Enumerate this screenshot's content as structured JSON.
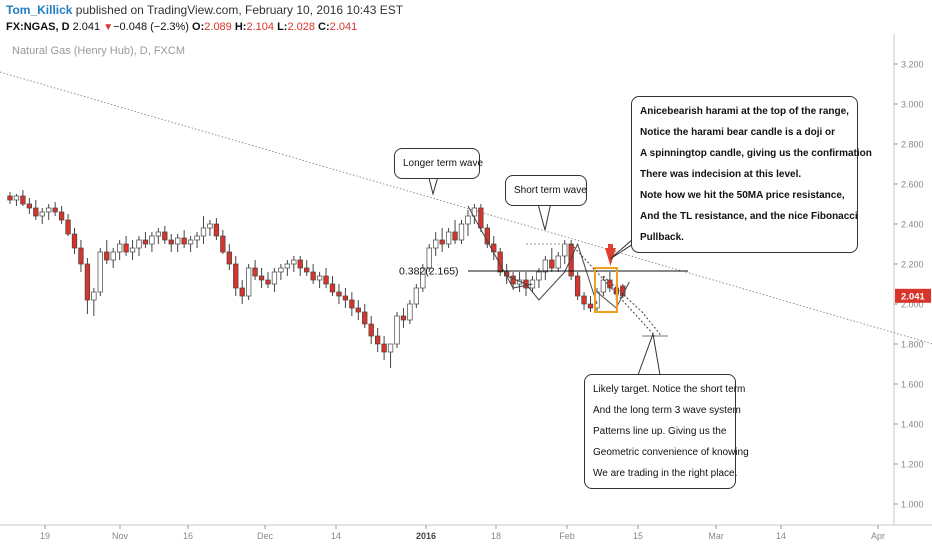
{
  "header": {
    "author": "Tom_Killick",
    "published": " published on TradingView.com, February 10, 2016 10:43 EST",
    "symbol": "FX:NGAS, D",
    "last": "2.041",
    "change_arrow": "▼",
    "change": "−0.048 (−2.3%)",
    "o_label": "O:",
    "o_value": "2.089",
    "h_label": "H:",
    "h_value": "2.104",
    "l_label": "L:",
    "l_value": "2.028",
    "c_label": "C:",
    "c_value": "2.041"
  },
  "chart_data": {
    "type": "candlestick",
    "title": "Natural Gas (Henry Hub), D, FXCM",
    "ylim": [
      0.92,
      3.27
    ],
    "y_ticks": [
      "3.200",
      "3.000",
      "2.800",
      "2.600",
      "2.400",
      "2.200",
      "2.000",
      "1.800",
      "1.600",
      "1.400",
      "1.200",
      "1.000"
    ],
    "x_tick_labels": [
      "19",
      "Nov",
      "16",
      "Dec",
      "14",
      "2016",
      "18",
      "Feb",
      "15",
      "Mar",
      "14",
      "Apr"
    ],
    "last_price_label": "2.041",
    "colors": {
      "up": "#ffffff",
      "down": "#d9342b",
      "outline": "#444444",
      "last_price": "#d9342b",
      "box": "#f0a020",
      "arrow": "#e04030"
    },
    "candles": [
      [
        2.54,
        2.56,
        2.5,
        2.52
      ],
      [
        2.52,
        2.55,
        2.49,
        2.54
      ],
      [
        2.54,
        2.57,
        2.49,
        2.5
      ],
      [
        2.5,
        2.53,
        2.45,
        2.48
      ],
      [
        2.48,
        2.52,
        2.42,
        2.44
      ],
      [
        2.44,
        2.48,
        2.4,
        2.46
      ],
      [
        2.46,
        2.5,
        2.42,
        2.48
      ],
      [
        2.48,
        2.51,
        2.44,
        2.46
      ],
      [
        2.46,
        2.49,
        2.4,
        2.42
      ],
      [
        2.42,
        2.45,
        2.34,
        2.35
      ],
      [
        2.35,
        2.38,
        2.25,
        2.28
      ],
      [
        2.28,
        2.32,
        2.16,
        2.2
      ],
      [
        2.2,
        2.23,
        1.95,
        2.02
      ],
      [
        2.02,
        2.08,
        1.94,
        2.06
      ],
      [
        2.06,
        2.28,
        2.04,
        2.26
      ],
      [
        2.26,
        2.32,
        2.2,
        2.22
      ],
      [
        2.22,
        2.28,
        2.18,
        2.26
      ],
      [
        2.26,
        2.32,
        2.22,
        2.3
      ],
      [
        2.3,
        2.34,
        2.24,
        2.26
      ],
      [
        2.26,
        2.32,
        2.22,
        2.28
      ],
      [
        2.28,
        2.34,
        2.24,
        2.32
      ],
      [
        2.32,
        2.36,
        2.28,
        2.3
      ],
      [
        2.3,
        2.36,
        2.26,
        2.34
      ],
      [
        2.34,
        2.38,
        2.3,
        2.36
      ],
      [
        2.36,
        2.39,
        2.3,
        2.32
      ],
      [
        2.32,
        2.35,
        2.26,
        2.3
      ],
      [
        2.3,
        2.35,
        2.26,
        2.33
      ],
      [
        2.33,
        2.37,
        2.28,
        2.3
      ],
      [
        2.3,
        2.34,
        2.26,
        2.32
      ],
      [
        2.32,
        2.36,
        2.28,
        2.34
      ],
      [
        2.34,
        2.44,
        2.3,
        2.38
      ],
      [
        2.38,
        2.42,
        2.34,
        2.4
      ],
      [
        2.4,
        2.43,
        2.32,
        2.34
      ],
      [
        2.34,
        2.37,
        2.25,
        2.26
      ],
      [
        2.26,
        2.3,
        2.17,
        2.2
      ],
      [
        2.2,
        2.24,
        2.04,
        2.08
      ],
      [
        2.08,
        2.12,
        2.0,
        2.04
      ],
      [
        2.04,
        2.2,
        2.02,
        2.18
      ],
      [
        2.18,
        2.22,
        2.12,
        2.14
      ],
      [
        2.14,
        2.18,
        2.08,
        2.12
      ],
      [
        2.12,
        2.16,
        2.08,
        2.1
      ],
      [
        2.1,
        2.18,
        2.06,
        2.16
      ],
      [
        2.16,
        2.2,
        2.12,
        2.18
      ],
      [
        2.18,
        2.22,
        2.14,
        2.2
      ],
      [
        2.2,
        2.24,
        2.16,
        2.22
      ],
      [
        2.22,
        2.24,
        2.14,
        2.18
      ],
      [
        2.18,
        2.22,
        2.14,
        2.16
      ],
      [
        2.16,
        2.2,
        2.1,
        2.12
      ],
      [
        2.12,
        2.16,
        2.08,
        2.14
      ],
      [
        2.14,
        2.18,
        2.08,
        2.1
      ],
      [
        2.1,
        2.14,
        2.04,
        2.06
      ],
      [
        2.06,
        2.1,
        2.0,
        2.04
      ],
      [
        2.04,
        2.08,
        1.98,
        2.02
      ],
      [
        2.02,
        2.06,
        1.94,
        1.98
      ],
      [
        1.98,
        2.02,
        1.92,
        1.96
      ],
      [
        1.96,
        2.0,
        1.88,
        1.9
      ],
      [
        1.9,
        1.94,
        1.8,
        1.84
      ],
      [
        1.84,
        1.88,
        1.76,
        1.8
      ],
      [
        1.8,
        1.84,
        1.72,
        1.76
      ],
      [
        1.76,
        1.8,
        1.68,
        1.8
      ],
      [
        1.8,
        1.96,
        1.78,
        1.94
      ],
      [
        1.94,
        1.98,
        1.88,
        1.92
      ],
      [
        1.92,
        2.02,
        1.9,
        2.0
      ],
      [
        2.0,
        2.1,
        1.98,
        2.08
      ],
      [
        2.08,
        2.2,
        2.06,
        2.18
      ],
      [
        2.18,
        2.3,
        2.16,
        2.28
      ],
      [
        2.28,
        2.36,
        2.24,
        2.32
      ],
      [
        2.32,
        2.38,
        2.26,
        2.3
      ],
      [
        2.3,
        2.38,
        2.28,
        2.36
      ],
      [
        2.36,
        2.42,
        2.3,
        2.32
      ],
      [
        2.32,
        2.42,
        2.3,
        2.4
      ],
      [
        2.4,
        2.47,
        2.34,
        2.44
      ],
      [
        2.44,
        2.5,
        2.4,
        2.48
      ],
      [
        2.48,
        2.5,
        2.36,
        2.38
      ],
      [
        2.38,
        2.4,
        2.28,
        2.3
      ],
      [
        2.3,
        2.34,
        2.22,
        2.26
      ],
      [
        2.26,
        2.28,
        2.14,
        2.16
      ],
      [
        2.16,
        2.2,
        2.1,
        2.14
      ],
      [
        2.14,
        2.16,
        2.07,
        2.1
      ],
      [
        2.1,
        2.16,
        2.06,
        2.12
      ],
      [
        2.12,
        2.16,
        2.04,
        2.08
      ],
      [
        2.08,
        2.14,
        2.06,
        2.12
      ],
      [
        2.12,
        2.18,
        2.08,
        2.16
      ],
      [
        2.16,
        2.24,
        2.12,
        2.22
      ],
      [
        2.22,
        2.28,
        2.16,
        2.18
      ],
      [
        2.18,
        2.26,
        2.16,
        2.24
      ],
      [
        2.24,
        2.32,
        2.2,
        2.3
      ],
      [
        2.3,
        2.32,
        2.12,
        2.14
      ],
      [
        2.14,
        2.16,
        2.02,
        2.04
      ],
      [
        2.04,
        2.06,
        1.97,
        2.0
      ],
      [
        2.0,
        2.04,
        1.96,
        1.98
      ],
      [
        1.98,
        2.08,
        1.96,
        2.06
      ],
      [
        2.06,
        2.14,
        2.04,
        2.12
      ],
      [
        2.12,
        2.16,
        2.06,
        2.08
      ],
      [
        2.08,
        2.1,
        2.02,
        2.05
      ],
      [
        2.09,
        2.1,
        2.03,
        2.04
      ]
    ],
    "annotations": [
      {
        "name": "longer-term-wave",
        "lines": [
          "Longer term wave"
        ]
      },
      {
        "name": "short-term-wave",
        "lines": [
          "Short term wave"
        ]
      },
      {
        "name": "harami-note",
        "lines": [
          "Anicebearish harami at the top of the range,",
          "Notice the harami bear candle is a doji or",
          "A spinningtop candle, giving us the confirmation",
          "There was indecision at this level.",
          "Note how we hit the 50MA price resistance,",
          "And the TL resistance, and the nice Fibonacci",
          "Pullback."
        ]
      },
      {
        "name": "likely-target",
        "lines": [
          "Likely target. Notice the short term",
          "And the long term 3 wave system",
          "Patterns line up. Giving us the",
          "Geometric convenience of knowing",
          "We are trading in the right place."
        ]
      }
    ],
    "fib_label": "0.382(2.165)",
    "fib_level": 2.165,
    "trendline": {
      "from": [
        0,
        3.21
      ],
      "to": [
        150,
        1.72
      ]
    }
  }
}
